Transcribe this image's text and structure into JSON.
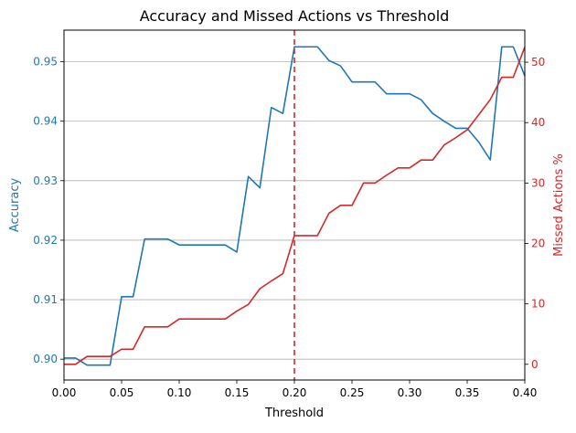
{
  "chart_data": {
    "type": "line",
    "title": "Accuracy and Missed Actions vs Threshold",
    "xlabel": "Threshold",
    "ylabel_left": "Accuracy",
    "ylabel_right": "Missed Actions %",
    "xlim": [
      0.0,
      0.4
    ],
    "ylim_left": [
      0.8965,
      0.9553
    ],
    "ylim_right": [
      -2.6,
      55.3
    ],
    "x_ticks": [
      0.0,
      0.05,
      0.1,
      0.15,
      0.2,
      0.25,
      0.3,
      0.35,
      0.4
    ],
    "x_tick_labels": [
      "0.00",
      "0.05",
      "0.10",
      "0.15",
      "0.20",
      "0.25",
      "0.30",
      "0.35",
      "0.40"
    ],
    "y_left_ticks": [
      0.9,
      0.91,
      0.92,
      0.93,
      0.94,
      0.95
    ],
    "y_left_tick_labels": [
      "0.90",
      "0.91",
      "0.92",
      "0.93",
      "0.94",
      "0.95"
    ],
    "y_right_ticks": [
      0,
      10,
      20,
      30,
      40,
      50
    ],
    "y_right_tick_labels": [
      "0",
      "10",
      "20",
      "30",
      "40",
      "50"
    ],
    "grid": "horizontal (left axis)",
    "threshold_line": {
      "x": 0.2,
      "style": "dashed",
      "color": "#d62728"
    },
    "colors": {
      "accuracy": "#1f77b4",
      "missed": "#d62728"
    },
    "series": [
      {
        "axis": "left",
        "color": "#1f77b4",
        "x": [
          0.0,
          0.01,
          0.02,
          0.03,
          0.04,
          0.05,
          0.06,
          0.07,
          0.08,
          0.09,
          0.1,
          0.11,
          0.12,
          0.13,
          0.14,
          0.15,
          0.16,
          0.17,
          0.18,
          0.19,
          0.2,
          0.21,
          0.22,
          0.23,
          0.24,
          0.25,
          0.26,
          0.27,
          0.28,
          0.29,
          0.3,
          0.31,
          0.32,
          0.33,
          0.34,
          0.35,
          0.36,
          0.37,
          0.38,
          0.39,
          0.4
        ],
        "values": [
          0.9002,
          0.9002,
          0.899,
          0.899,
          0.899,
          0.9105,
          0.9105,
          0.9202,
          0.9202,
          0.9202,
          0.9192,
          0.9192,
          0.9192,
          0.9192,
          0.9192,
          0.918,
          0.9307,
          0.9288,
          0.9423,
          0.9413,
          0.9525,
          0.9525,
          0.9525,
          0.9502,
          0.9493,
          0.9466,
          0.9466,
          0.9466,
          0.9446,
          0.9446,
          0.9446,
          0.9436,
          0.9413,
          0.94,
          0.9388,
          0.9388,
          0.9365,
          0.9335,
          0.9525,
          0.9525,
          0.9476
        ]
      },
      {
        "axis": "right",
        "color": "#d62728",
        "x": [
          0.0,
          0.01,
          0.02,
          0.03,
          0.04,
          0.05,
          0.06,
          0.07,
          0.08,
          0.09,
          0.1,
          0.11,
          0.12,
          0.13,
          0.14,
          0.15,
          0.16,
          0.17,
          0.18,
          0.19,
          0.2,
          0.21,
          0.22,
          0.23,
          0.24,
          0.25,
          0.26,
          0.27,
          0.28,
          0.29,
          0.3,
          0.31,
          0.32,
          0.33,
          0.34,
          0.35,
          0.36,
          0.37,
          0.38,
          0.39,
          0.4
        ],
        "values": [
          0.0,
          0.0,
          1.3,
          1.3,
          1.3,
          2.5,
          2.5,
          6.2,
          6.2,
          6.2,
          7.5,
          7.5,
          7.5,
          7.5,
          7.5,
          8.8,
          9.9,
          12.5,
          13.8,
          15.0,
          21.3,
          21.3,
          21.3,
          25.0,
          26.3,
          26.3,
          30.0,
          30.0,
          31.3,
          32.5,
          32.5,
          33.8,
          33.8,
          36.3,
          37.5,
          38.8,
          41.3,
          43.8,
          47.5,
          47.5,
          52.5
        ]
      }
    ]
  }
}
